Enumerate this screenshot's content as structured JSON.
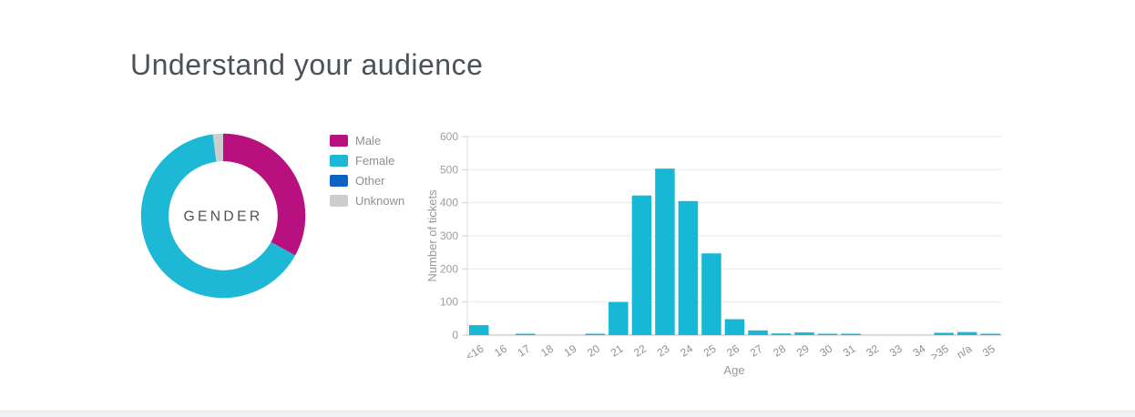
{
  "page": {
    "title": "Understand your audience"
  },
  "chart_data": [
    {
      "type": "pie",
      "subtype": "donut",
      "center_label": "GENDER",
      "labels": [
        "Male",
        "Female",
        "Other",
        "Unknown"
      ],
      "values": [
        33,
        65,
        0,
        2
      ],
      "unit": "percent",
      "colors": [
        "#b8107f",
        "#1cb8d6",
        "#0f63c0",
        "#cdcdcd"
      ],
      "legend_position": "right",
      "start_angle_deg": 0,
      "direction": "clockwise"
    },
    {
      "type": "bar",
      "title": "",
      "xlabel": "Age",
      "ylabel": "Number of tickets",
      "categories": [
        "<16",
        "16",
        "17",
        "18",
        "19",
        "20",
        "21",
        "22",
        "23",
        "24",
        "25",
        "26",
        "27",
        "28",
        "29",
        "30",
        "31",
        "32",
        "33",
        "34",
        ">35",
        "n/a",
        "35"
      ],
      "values": [
        30,
        0,
        2,
        0,
        0,
        2,
        100,
        422,
        503,
        405,
        247,
        48,
        14,
        5,
        8,
        2,
        4,
        0,
        0,
        0,
        7,
        9,
        2
      ],
      "ylim": [
        0,
        600
      ],
      "y_ticks": [
        0,
        100,
        200,
        300,
        400,
        500,
        600
      ],
      "bar_color": "#16b8d6",
      "grid": true,
      "legend_position": "none",
      "x_label_rotation_deg": -33
    }
  ]
}
